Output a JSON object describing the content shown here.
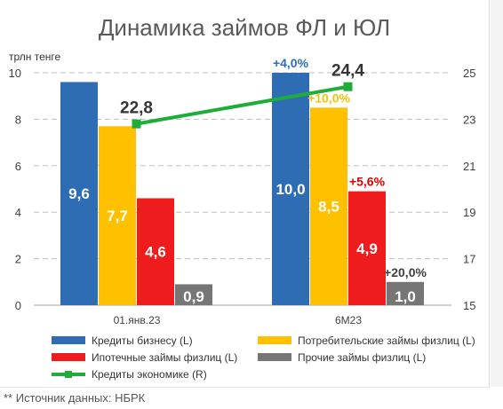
{
  "chart_data": {
    "type": "bar",
    "title": "Динамика займов ФЛ и ЮЛ",
    "ylabel": "трлн тенге",
    "categories": [
      "01.янв.23",
      "6М23"
    ],
    "ylim": [
      0,
      10
    ],
    "y_ticks": [
      "0",
      "2",
      "4",
      "6",
      "8",
      "10"
    ],
    "y2lim": [
      15,
      25
    ],
    "y2_ticks": [
      "15",
      "17",
      "19",
      "21",
      "23",
      "25"
    ],
    "grid": true,
    "legend_position": "bottom",
    "series": [
      {
        "name": "Кредиты бизнесу (L)",
        "axis": "left",
        "color": "#2e6db4",
        "values": [
          9.6,
          10.0
        ],
        "labels": [
          "9,6",
          "10,0"
        ],
        "change_labels": [
          "",
          "+4,0%"
        ],
        "change_color": "#2e6db4"
      },
      {
        "name": "Потребительские займы физлиц (L)",
        "axis": "left",
        "color": "#ffc000",
        "values": [
          7.7,
          8.5
        ],
        "labels": [
          "7,7",
          "8,5"
        ],
        "change_labels": [
          "",
          "+10,0%"
        ],
        "change_color": "#ffc000"
      },
      {
        "name": "Ипотечные займы физлиц (L)",
        "axis": "left",
        "color": "#ee1c1c",
        "values": [
          4.6,
          4.9
        ],
        "labels": [
          "4,6",
          "4,9"
        ],
        "change_labels": [
          "",
          "+5,6%"
        ],
        "change_color": "#e00000"
      },
      {
        "name": "Прочие займы физлиц (L)",
        "axis": "left",
        "color": "#767676",
        "values": [
          0.9,
          1.0
        ],
        "labels": [
          "0,9",
          "1,0"
        ],
        "change_labels": [
          "",
          "+20,0%"
        ],
        "change_color": "#404040"
      },
      {
        "name": "Кредиты экономике (R)",
        "axis": "right",
        "type": "line",
        "color": "#1fad3a",
        "values": [
          22.8,
          24.4
        ],
        "labels": [
          "22,8",
          "24,4"
        ]
      }
    ]
  },
  "footer": {
    "source": "** Источник данных: НБРК"
  }
}
